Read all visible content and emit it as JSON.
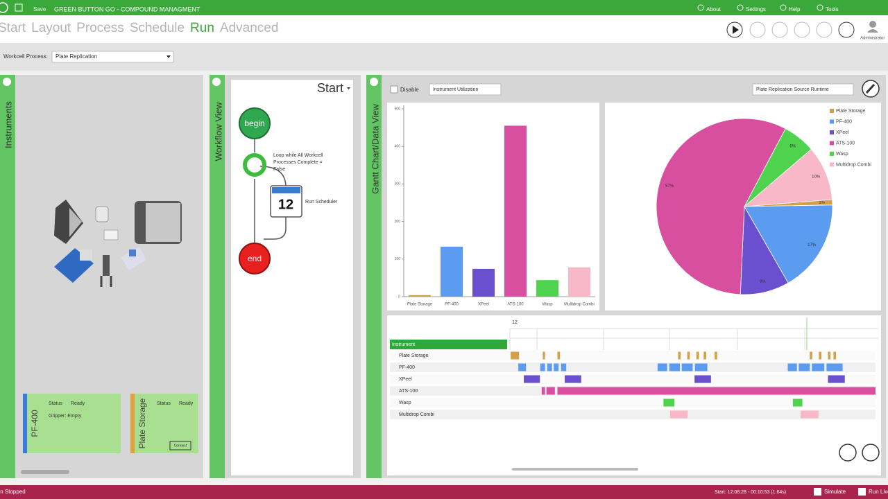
{
  "titlebar": {
    "save": "Save",
    "app": "GREEN BUTTON GO - COMPOUND MANAGMENT",
    "menu": [
      "About",
      "Settings",
      "Help",
      "Tools"
    ]
  },
  "nav": {
    "tabs": [
      "Start",
      "Layout",
      "Process",
      "Schedule",
      "Run",
      "Advanced"
    ],
    "active": 4,
    "user": "Administrator"
  },
  "process": {
    "label": "Workcell Process:",
    "value": "Plate Replication"
  },
  "panels": {
    "instruments": "Instruments",
    "workflow": "Workflow View",
    "gantt": "Gantt Chart/Data View"
  },
  "instrument_cards": [
    {
      "name": "PF-400",
      "status_label": "Status",
      "status": "Ready",
      "detail": "Gripper: Empty",
      "color": "#3b7be0"
    },
    {
      "name": "Plate Storage",
      "status_label": "Status",
      "status": "Ready",
      "button": "Connect",
      "color": "#e0a040"
    }
  ],
  "workflow": {
    "start": "Start",
    "begin": "begin",
    "loop": [
      "Loop while All Workcell",
      "Processes Complete =",
      "False"
    ],
    "calendar": "12",
    "scheduler": "Run Scheduler",
    "end": "end"
  },
  "data_view": {
    "disable": "Disable",
    "view": "Instrument Utilization",
    "source": "Plate Replication Source Runtime"
  },
  "chart_data": [
    {
      "type": "bar",
      "categories": [
        "Plate Storage",
        "PF-400",
        "XPeel",
        "ATS-100",
        "Wasp",
        "Multidrop Combi"
      ],
      "values": [
        4,
        133,
        74,
        455,
        44,
        78
      ],
      "colors": [
        "#d4a04a",
        "#5b9bf0",
        "#6a4fcf",
        "#d94fa0",
        "#4fd34f",
        "#f8b8c8"
      ],
      "ylim": [
        0,
        500
      ],
      "yticks": [
        0,
        100,
        200,
        300,
        400,
        500
      ],
      "grid": false
    },
    {
      "type": "pie",
      "categories": [
        "Plate Storage",
        "PF-400",
        "XPeel",
        "ATS-100",
        "Wasp",
        "Multidrop Combi"
      ],
      "values": [
        1,
        17,
        9,
        57,
        6,
        10
      ],
      "value_labels": [
        "1%",
        "17%",
        "9%",
        "57%",
        "6%",
        "10%"
      ],
      "colors": [
        "#d4a04a",
        "#5b9bf0",
        "#6a4fcf",
        "#d94fa0",
        "#4fd34f",
        "#f8b8c8"
      ],
      "legend": "top-right"
    }
  ],
  "gantt": {
    "time_label": "12",
    "header": "Instrument",
    "xlim": [
      0,
      100
    ],
    "rows": [
      {
        "name": "Plate Storage",
        "color": "#d4a04a",
        "segments": [
          [
            0.2,
            2.5
          ],
          [
            9,
            9.6
          ],
          [
            13,
            13.7
          ],
          [
            46,
            46.7
          ],
          [
            48.5,
            49.2
          ],
          [
            51,
            51.7
          ],
          [
            53,
            53.7
          ],
          [
            56,
            56.7
          ],
          [
            82,
            82.7
          ],
          [
            84.5,
            85.2
          ],
          [
            87,
            87.7
          ],
          [
            88.5,
            89.2
          ]
        ]
      },
      {
        "name": "PF-400",
        "color": "#5b9bf0",
        "segments": [
          [
            2.3,
            4.4
          ],
          [
            8.3,
            9.6
          ],
          [
            10.2,
            11.5
          ],
          [
            12,
            13.3
          ],
          [
            14,
            15.4
          ],
          [
            40.4,
            43
          ],
          [
            43.6,
            46.5
          ],
          [
            47,
            50
          ],
          [
            50.6,
            54
          ],
          [
            76,
            78.5
          ],
          [
            79,
            82
          ],
          [
            82.6,
            86
          ],
          [
            86.6,
            91
          ]
        ]
      },
      {
        "name": "XPeel",
        "color": "#6a4fcf",
        "segments": [
          [
            3.8,
            8.2
          ],
          [
            15,
            19.5
          ],
          [
            50.5,
            55
          ],
          [
            87,
            91.6
          ]
        ]
      },
      {
        "name": "ATS-100",
        "color": "#d94fa0",
        "segments": [
          [
            8.7,
            9.6
          ],
          [
            10,
            12.3
          ],
          [
            13,
            100
          ]
        ]
      },
      {
        "name": "Wasp",
        "color": "#4fd34f",
        "segments": [
          [
            42,
            45
          ],
          [
            77.4,
            80
          ]
        ]
      },
      {
        "name": "Multidrop Combi",
        "color": "#f8b8c8",
        "segments": [
          [
            43.8,
            48.6
          ],
          [
            79.5,
            84.4
          ]
        ]
      }
    ]
  },
  "status": {
    "state": "Run Stopped",
    "time": "Start: 12:08:28 - 00:10:53 (1.64s)",
    "simulate": "Simulate",
    "run": "Run Live"
  }
}
